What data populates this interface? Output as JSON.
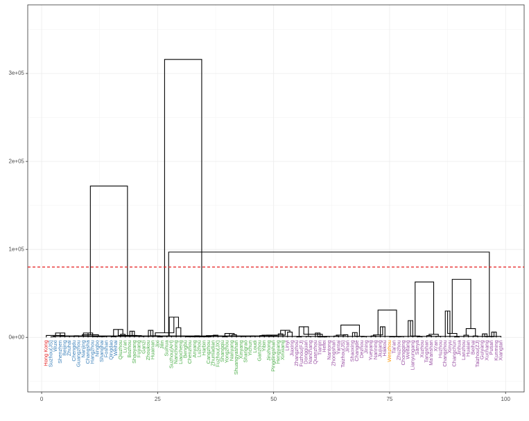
{
  "chart_data": {
    "type": "dendrogram",
    "title": "",
    "xlabel": "",
    "ylabel": "",
    "xlim": [
      -3,
      104
    ],
    "ylim": [
      -62000,
      378000
    ],
    "x_ticks": [
      0,
      25,
      50,
      75,
      100
    ],
    "x_tick_labels": [
      "0",
      "25",
      "50",
      "75",
      "100"
    ],
    "y_ticks": [
      0,
      100000,
      200000,
      300000
    ],
    "y_tick_labels": [
      "0e+00",
      "1e+05",
      "2e+05",
      "3e+05"
    ],
    "cut_height": 80000,
    "cut_line_color": "#e41a1c",
    "cluster_colors": {
      "red": "#e41a1c",
      "blue": "#377eb8",
      "green": "#4daf4a",
      "purple": "#984ea3",
      "orange": "#ff9900"
    },
    "leaves": [
      {
        "label": "Hong Kong",
        "color": "#e41a1c"
      },
      {
        "label": "Suzhou(JS)",
        "color": "#377eb8"
      },
      {
        "label": "Wuxi",
        "color": "#377eb8"
      },
      {
        "label": "Shenzhen",
        "color": "#377eb8"
      },
      {
        "label": "Beijing",
        "color": "#377eb8"
      },
      {
        "label": "Zhuhai",
        "color": "#377eb8"
      },
      {
        "label": "Chengdu",
        "color": "#377eb8"
      },
      {
        "label": "Guangzhou",
        "color": "#377eb8"
      },
      {
        "label": "Nanjing",
        "color": "#377eb8"
      },
      {
        "label": "Changsha",
        "color": "#377eb8"
      },
      {
        "label": "Hangzhou",
        "color": "#377eb8"
      },
      {
        "label": "Ningbo",
        "color": "#377eb8"
      },
      {
        "label": "Shanghai",
        "color": "#377eb8"
      },
      {
        "label": "Foshan",
        "color": "#377eb8"
      },
      {
        "label": "Qingdao",
        "color": "#377eb8"
      },
      {
        "label": "Weihai",
        "color": "#377eb8"
      },
      {
        "label": "Qiuzhou",
        "color": "#4daf4a"
      },
      {
        "label": "Lu'an",
        "color": "#4daf4a"
      },
      {
        "label": "Bozhou",
        "color": "#4daf4a"
      },
      {
        "label": "Shaoyang",
        "color": "#4daf4a"
      },
      {
        "label": "Fuyang",
        "color": "#4daf4a"
      },
      {
        "label": "Ganzi",
        "color": "#4daf4a"
      },
      {
        "label": "Zhoukou",
        "color": "#4daf4a"
      },
      {
        "label": "Huainan",
        "color": "#4daf4a"
      },
      {
        "label": "Jixi",
        "color": "#4daf4a"
      },
      {
        "label": "Jilin",
        "color": "#4daf4a"
      },
      {
        "label": "Suihua",
        "color": "#4daf4a"
      },
      {
        "label": "Suzhou(AH)",
        "color": "#4daf4a"
      },
      {
        "label": "Nanchong",
        "color": "#4daf4a"
      },
      {
        "label": "Liaocheng",
        "color": "#4daf4a"
      },
      {
        "label": "Bengbu",
        "color": "#4daf4a"
      },
      {
        "label": "Chenzhou",
        "color": "#4daf4a"
      },
      {
        "label": "Anyang",
        "color": "#4daf4a"
      },
      {
        "label": "Luzhou",
        "color": "#4daf4a"
      },
      {
        "label": "Harbin",
        "color": "#4daf4a"
      },
      {
        "label": "Cangzhou",
        "color": "#4daf4a"
      },
      {
        "label": "Zhumadian",
        "color": "#4daf4a"
      },
      {
        "label": "Fuzhou(JX)",
        "color": "#4daf4a"
      },
      {
        "label": "Shangqiu",
        "color": "#4daf4a"
      },
      {
        "label": "Yongzhou",
        "color": "#4daf4a"
      },
      {
        "label": "Nanyang",
        "color": "#4daf4a"
      },
      {
        "label": "Shuangyashan",
        "color": "#4daf4a"
      },
      {
        "label": "Xinyang",
        "color": "#4daf4a"
      },
      {
        "label": "Shangrao",
        "color": "#4daf4a"
      },
      {
        "label": "Yichun",
        "color": "#4daf4a"
      },
      {
        "label": "Loudi",
        "color": "#4daf4a"
      },
      {
        "label": "Ganzhou",
        "color": "#4daf4a"
      },
      {
        "label": "Yibin",
        "color": "#4daf4a"
      },
      {
        "label": "Jinzhong",
        "color": "#4daf4a"
      },
      {
        "label": "Pingdingshan",
        "color": "#4daf4a"
      },
      {
        "label": "Hengyang",
        "color": "#4daf4a"
      },
      {
        "label": "Xinxiang",
        "color": "#4daf4a"
      },
      {
        "label": "Linyi",
        "color": "#984ea3"
      },
      {
        "label": "Jiaxing",
        "color": "#984ea3"
      },
      {
        "label": "Zhangzhou",
        "color": "#984ea3"
      },
      {
        "label": "Fuzhou(FJ)",
        "color": "#984ea3"
      },
      {
        "label": "Dongguan",
        "color": "#984ea3"
      },
      {
        "label": "Nanchang",
        "color": "#984ea3"
      },
      {
        "label": "Quanzhou",
        "color": "#984ea3"
      },
      {
        "label": "Tianjin",
        "color": "#984ea3"
      },
      {
        "label": "Hefei",
        "color": "#984ea3"
      },
      {
        "label": "Nantong",
        "color": "#984ea3"
      },
      {
        "label": "Zhongshan",
        "color": "#984ea3"
      },
      {
        "label": "Yantai",
        "color": "#984ea3"
      },
      {
        "label": "Taizhou(JS)",
        "color": "#984ea3"
      },
      {
        "label": "Jinan",
        "color": "#984ea3"
      },
      {
        "label": "Shaoxing",
        "color": "#984ea3"
      },
      {
        "label": "Changde",
        "color": "#984ea3"
      },
      {
        "label": "Dezhou",
        "color": "#984ea3"
      },
      {
        "label": "Jining",
        "color": "#984ea3"
      },
      {
        "label": "Yueyang",
        "color": "#984ea3"
      },
      {
        "label": "Nanning",
        "color": "#984ea3"
      },
      {
        "label": "Jiujiang",
        "color": "#984ea3"
      },
      {
        "label": "Haikou",
        "color": "#984ea3"
      },
      {
        "label": "Wenzhou",
        "color": "#ff9900"
      },
      {
        "label": "Tai'an",
        "color": "#984ea3"
      },
      {
        "label": "Zhuzhou",
        "color": "#984ea3"
      },
      {
        "label": "Chongqing",
        "color": "#984ea3"
      },
      {
        "label": "Weifang",
        "color": "#984ea3"
      },
      {
        "label": "Lianyungang",
        "color": "#984ea3"
      },
      {
        "label": "Sanya",
        "color": "#984ea3"
      },
      {
        "label": "Xuzhou",
        "color": "#984ea3"
      },
      {
        "label": "Tangshan",
        "color": "#984ea3"
      },
      {
        "label": "Ma'anshan",
        "color": "#984ea3"
      },
      {
        "label": "Xi'an",
        "color": "#984ea3"
      },
      {
        "label": "Huzhou",
        "color": "#984ea3"
      },
      {
        "label": "Changzhou",
        "color": "#984ea3"
      },
      {
        "label": "Xinyu",
        "color": "#984ea3"
      },
      {
        "label": "Changchun",
        "color": "#984ea3"
      },
      {
        "label": "Jinhua",
        "color": "#984ea3"
      },
      {
        "label": "Lanzhou",
        "color": "#984ea3"
      },
      {
        "label": "Huaian",
        "color": "#984ea3"
      },
      {
        "label": "Beihai",
        "color": "#984ea3"
      },
      {
        "label": "Taizhou(ZJ)",
        "color": "#984ea3"
      },
      {
        "label": "Guiyang",
        "color": "#984ea3"
      },
      {
        "label": "Xuchang",
        "color": "#984ea3"
      },
      {
        "label": "Putian",
        "color": "#984ea3"
      },
      {
        "label": "Kunming",
        "color": "#984ea3"
      },
      {
        "label": "Xiangtan",
        "color": "#984ea3"
      }
    ],
    "merges": [
      [
        1,
        2,
        600
      ],
      [
        0,
        4,
        2200
      ],
      [
        3,
        5,
        1500
      ],
      [
        6,
        7,
        1800
      ],
      [
        8,
        10,
        5000
      ],
      [
        9,
        11,
        1200
      ],
      [
        12,
        13,
        900
      ],
      [
        14,
        15,
        700
      ],
      [
        16,
        17,
        3500
      ],
      [
        18,
        19,
        7000
      ],
      [
        20,
        21,
        1000
      ],
      [
        22,
        23,
        8000
      ],
      [
        24,
        25,
        500
      ],
      [
        26,
        27,
        1500
      ],
      [
        28,
        29,
        11000
      ],
      [
        30,
        31,
        700
      ],
      [
        32,
        33,
        1800
      ],
      [
        34,
        35,
        1200
      ],
      [
        36,
        37,
        2500
      ],
      [
        38,
        39,
        600
      ],
      [
        40,
        41,
        3000
      ],
      [
        42,
        43,
        900
      ],
      [
        44,
        45,
        1500
      ],
      [
        46,
        47,
        2000
      ],
      [
        48,
        49,
        1000
      ],
      [
        50,
        51,
        4000
      ],
      [
        52,
        53,
        6000
      ],
      [
        54,
        55,
        500
      ],
      [
        56,
        57,
        900
      ],
      [
        58,
        59,
        5000
      ],
      [
        60,
        61,
        1000
      ],
      [
        62,
        63,
        1500
      ],
      [
        64,
        65,
        3000
      ],
      [
        66,
        67,
        5500
      ],
      [
        68,
        69,
        800
      ],
      [
        70,
        71,
        1600
      ],
      [
        72,
        73,
        12000
      ],
      [
        74,
        75,
        600
      ],
      [
        76,
        77,
        900
      ],
      [
        78,
        79,
        19000
      ],
      [
        80,
        81,
        700
      ],
      [
        82,
        83,
        2000
      ],
      [
        84,
        85,
        1100
      ],
      [
        86,
        87,
        30000
      ],
      [
        88,
        89,
        500
      ],
      [
        90,
        91,
        2500
      ],
      [
        92,
        93,
        1600
      ],
      [
        94,
        95,
        4000
      ],
      [
        96,
        97,
        6000
      ],
      [
        98,
        99,
        1100
      ],
      [
        100,
        101,
        5000
      ],
      [
        102,
        103,
        1500
      ],
      [
        104,
        105,
        800
      ],
      [
        106,
        107,
        9000
      ],
      [
        108,
        109,
        2000
      ],
      [
        110,
        111,
        1800
      ],
      [
        112,
        113,
        23000
      ],
      [
        114,
        115,
        700
      ],
      [
        116,
        117,
        2000
      ],
      [
        118,
        119,
        4500
      ],
      [
        120,
        121,
        1200
      ],
      [
        122,
        123,
        2500
      ],
      [
        124,
        125,
        8000
      ],
      [
        126,
        127,
        12000
      ],
      [
        128,
        129,
        500
      ],
      [
        130,
        131,
        2600
      ],
      [
        132,
        133,
        1200
      ],
      [
        134,
        135,
        2800
      ],
      [
        136,
        137,
        700
      ],
      [
        138,
        139,
        1500
      ],
      [
        140,
        141,
        3500
      ],
      [
        142,
        143,
        4500
      ],
      [
        144,
        145,
        10000
      ],
      [
        146,
        147,
        800
      ],
      [
        148,
        149,
        1600
      ],
      [
        150,
        151,
        3000
      ],
      [
        152,
        153,
        2200
      ],
      [
        154,
        155,
        5200
      ],
      [
        156,
        157,
        600
      ],
      [
        158,
        159,
        1300
      ],
      [
        160,
        161,
        2600
      ],
      [
        162,
        163,
        3600
      ],
      [
        164,
        165,
        14000
      ],
      [
        166,
        167,
        31000
      ],
      [
        168,
        169,
        63000
      ],
      [
        170,
        171,
        66000
      ],
      [
        172,
        173,
        97000
      ],
      [
        174,
        175,
        172000
      ],
      [
        176,
        177,
        316000
      ]
    ]
  }
}
